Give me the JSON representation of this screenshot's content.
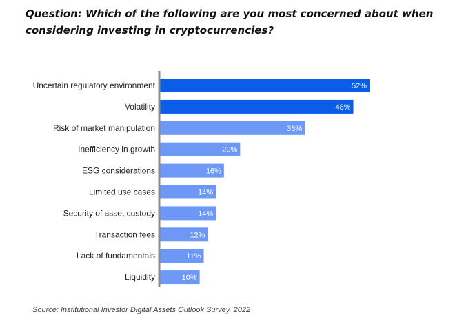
{
  "question": "Question: Which of the following are you most concerned about when considering investing in cryptocurrencies?",
  "source": "Source: Institutional Investor Digital Assets Outlook Survey, 2022",
  "chart_data": {
    "type": "bar",
    "orientation": "horizontal",
    "categories": [
      "Uncertain regulatory environment",
      "Volatility",
      "Risk of market manipulation",
      "Inefficiency in growth",
      "ESG considerations",
      "Limited use cases",
      "Security of asset custody",
      "Transaction fees",
      "Lack of fundamentals",
      "Liquidity"
    ],
    "values": [
      52,
      48,
      36,
      20,
      16,
      14,
      14,
      12,
      11,
      10
    ],
    "value_labels": [
      "52%",
      "48%",
      "36%",
      "20%",
      "16%",
      "14%",
      "14%",
      "12%",
      "11%",
      "10%"
    ],
    "unit": "%",
    "xlim": [
      0,
      52
    ],
    "grid": false,
    "legend": "none",
    "colors": {
      "highlight": "#0b5ce6",
      "default": "#6e98f5",
      "axis": "#8a8a8a",
      "label": "#222222",
      "value_label": "#ffffff"
    },
    "highlight_indices": [
      0,
      1
    ]
  }
}
